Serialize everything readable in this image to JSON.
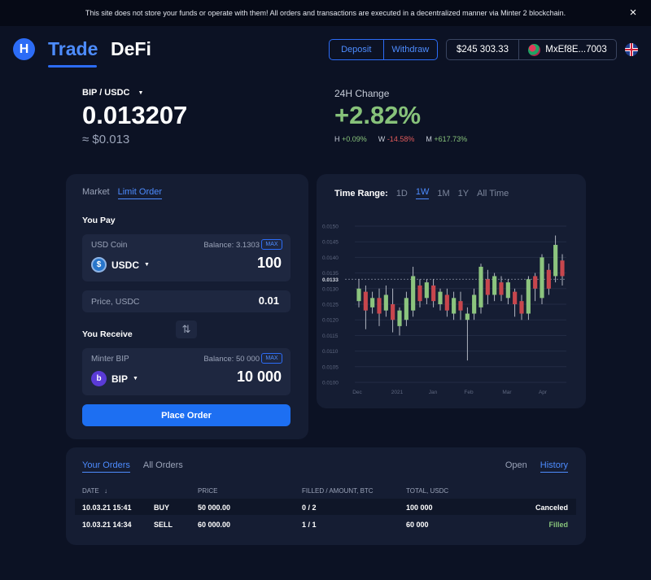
{
  "banner": {
    "text": "This site does not store your funds or operate with them! All orders and transactions are executed in a decentralized manner via Minter 2 blockchain.",
    "close": "×"
  },
  "header": {
    "logo": "H",
    "tabs": [
      {
        "label": "Trade",
        "active": true
      },
      {
        "label": "DeFi",
        "active": false
      }
    ],
    "deposit_label": "Deposit",
    "withdraw_label": "Withdraw",
    "balance": "$245 303.33",
    "address": "MxEf8E...7003",
    "language_icon": "uk-flag-icon"
  },
  "ticker": {
    "pair": "BIP / USDC",
    "price": "0.013207",
    "price_usd": "≈ $0.013",
    "change_label": "24H Change",
    "change": "+2.82%",
    "h_label": "H",
    "h_value": "+0.09%",
    "w_label": "W",
    "w_value": "-14.58%",
    "m_label": "M",
    "m_value": "+617.73%"
  },
  "order_form": {
    "tabs": [
      {
        "label": "Market",
        "active": false
      },
      {
        "label": "Limit Order",
        "active": true
      }
    ],
    "you_pay_label": "You Pay",
    "pay": {
      "coin_name": "USD Coin",
      "balance": "Balance: 3.1303",
      "max": "MAX",
      "token": "USDC",
      "amount": "100"
    },
    "price_label": "Price, USDC",
    "price_value": "0.01",
    "you_receive_label": "You Receive",
    "receive": {
      "coin_name": "Minter BIP",
      "balance": "Balance: 50 000",
      "max": "MAX",
      "token": "BIP",
      "amount": "10 000"
    },
    "swap_icon": "⇅",
    "place_order_label": "Place Order"
  },
  "chart_controls": {
    "label": "Time Range:",
    "ranges": [
      {
        "label": "1D",
        "active": false
      },
      {
        "label": "1W",
        "active": true
      },
      {
        "label": "1M",
        "active": false
      },
      {
        "label": "1Y",
        "active": false
      },
      {
        "label": "All Time",
        "active": false
      }
    ]
  },
  "chart_data": {
    "type": "candlestick",
    "y_ticks": [
      0.01,
      0.0105,
      0.011,
      0.0115,
      0.012,
      0.0125,
      0.013,
      0.0133,
      0.0135,
      0.014,
      0.0145,
      0.015
    ],
    "y_tick_labels": [
      "0.0100",
      "0.0105",
      "0.0110",
      "0.0115",
      "0.0120",
      "0.0125",
      "0.0130",
      "0.0133",
      "0.0135",
      "0.0140",
      "0.0145",
      "0.0150"
    ],
    "ylim": [
      0.01,
      0.015
    ],
    "current_price": 0.0133,
    "x_tick_labels": [
      "Dec",
      "2021",
      "Jan",
      "Feb",
      "Mar",
      "Apr"
    ],
    "colors": {
      "up": "#8cc47e",
      "down": "#c7464d",
      "wick": "#d6dae3",
      "grid": "#232c44",
      "current_line": "#8d95a8"
    },
    "candles": [
      {
        "o": 0.0126,
        "h": 0.0133,
        "l": 0.0124,
        "c": 0.013
      },
      {
        "o": 0.0129,
        "h": 0.0131,
        "l": 0.0117,
        "c": 0.0123
      },
      {
        "o": 0.0124,
        "h": 0.0129,
        "l": 0.0122,
        "c": 0.0127
      },
      {
        "o": 0.0127,
        "h": 0.013,
        "l": 0.0118,
        "c": 0.0122
      },
      {
        "o": 0.0123,
        "h": 0.0131,
        "l": 0.0121,
        "c": 0.0128
      },
      {
        "o": 0.0125,
        "h": 0.013,
        "l": 0.0116,
        "c": 0.012
      },
      {
        "o": 0.0118,
        "h": 0.0124,
        "l": 0.0115,
        "c": 0.0123
      },
      {
        "o": 0.012,
        "h": 0.0129,
        "l": 0.0118,
        "c": 0.0127
      },
      {
        "o": 0.0123,
        "h": 0.0137,
        "l": 0.0121,
        "c": 0.0134
      },
      {
        "o": 0.0131,
        "h": 0.0133,
        "l": 0.0124,
        "c": 0.0126
      },
      {
        "o": 0.0127,
        "h": 0.0133,
        "l": 0.0125,
        "c": 0.0132
      },
      {
        "o": 0.0131,
        "h": 0.0133,
        "l": 0.0124,
        "c": 0.0126
      },
      {
        "o": 0.0125,
        "h": 0.013,
        "l": 0.0123,
        "c": 0.0129
      },
      {
        "o": 0.0128,
        "h": 0.013,
        "l": 0.0121,
        "c": 0.0123
      },
      {
        "o": 0.0122,
        "h": 0.0129,
        "l": 0.012,
        "c": 0.0127
      },
      {
        "o": 0.0126,
        "h": 0.0129,
        "l": 0.012,
        "c": 0.0123
      },
      {
        "o": 0.012,
        "h": 0.0124,
        "l": 0.0107,
        "c": 0.0122
      },
      {
        "o": 0.0122,
        "h": 0.013,
        "l": 0.012,
        "c": 0.0128
      },
      {
        "o": 0.0124,
        "h": 0.0138,
        "l": 0.0122,
        "c": 0.0137
      },
      {
        "o": 0.0133,
        "h": 0.0136,
        "l": 0.0125,
        "c": 0.0128
      },
      {
        "o": 0.0128,
        "h": 0.0135,
        "l": 0.0126,
        "c": 0.0134
      },
      {
        "o": 0.0132,
        "h": 0.0134,
        "l": 0.0126,
        "c": 0.0128
      },
      {
        "o": 0.0127,
        "h": 0.0133,
        "l": 0.0125,
        "c": 0.0132
      },
      {
        "o": 0.0129,
        "h": 0.013,
        "l": 0.0121,
        "c": 0.0125
      },
      {
        "o": 0.0126,
        "h": 0.0128,
        "l": 0.012,
        "c": 0.0122
      },
      {
        "o": 0.0122,
        "h": 0.0134,
        "l": 0.012,
        "c": 0.0133
      },
      {
        "o": 0.0134,
        "h": 0.0135,
        "l": 0.0126,
        "c": 0.013
      },
      {
        "o": 0.0127,
        "h": 0.0141,
        "l": 0.0125,
        "c": 0.014
      },
      {
        "o": 0.0136,
        "h": 0.0138,
        "l": 0.0128,
        "c": 0.013
      },
      {
        "o": 0.0134,
        "h": 0.0147,
        "l": 0.0132,
        "c": 0.0144
      },
      {
        "o": 0.0139,
        "h": 0.0141,
        "l": 0.0131,
        "c": 0.0134
      }
    ]
  },
  "orders": {
    "tabs": [
      {
        "label": "Your Orders",
        "active": true
      },
      {
        "label": "All Orders",
        "active": false
      }
    ],
    "filter_tabs": [
      {
        "label": "Open",
        "active": false
      },
      {
        "label": "History",
        "active": true
      }
    ],
    "columns": {
      "date": "DATE",
      "sort_icon": "↓",
      "price": "PRICE",
      "filled": "FILLED / AMOUNT, BTC",
      "total": "TOTAL, USDC"
    },
    "rows": [
      {
        "date": "10.03.21 15:41",
        "side": "BUY",
        "price": "50 000.00",
        "filled": "0 / 2",
        "total": "100 000",
        "status": "Canceled"
      },
      {
        "date": "10.03.21 14:34",
        "side": "SELL",
        "price": "60 000.00",
        "filled": "1 / 1",
        "total": "60 000",
        "status": "Filled"
      }
    ]
  }
}
